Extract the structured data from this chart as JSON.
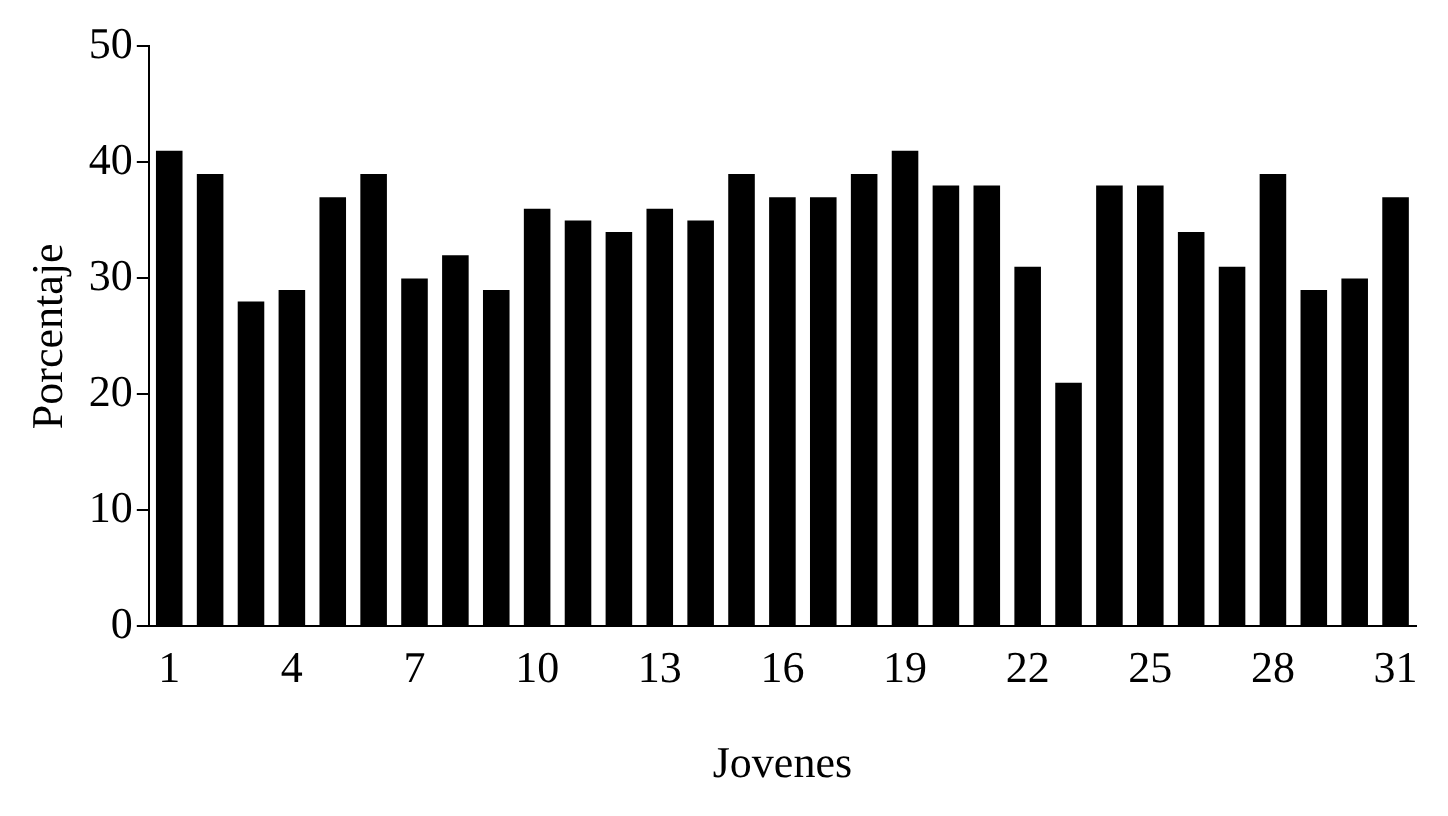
{
  "chart_data": {
    "type": "bar",
    "xlabel": "Jovenes",
    "ylabel": "Porcentaje",
    "categories": [
      "1",
      null,
      null,
      "4",
      null,
      null,
      "7",
      null,
      null,
      "10",
      null,
      null,
      "13",
      null,
      null,
      "16",
      null,
      null,
      "19",
      null,
      null,
      "22",
      null,
      null,
      "25",
      null,
      null,
      "28",
      null,
      null,
      "31"
    ],
    "values": [
      41,
      39,
      28,
      29,
      37,
      39,
      30,
      32,
      29,
      36,
      35,
      34,
      36,
      35,
      39,
      37,
      37,
      39,
      41,
      38,
      38,
      31,
      21,
      38,
      38,
      34,
      31,
      39,
      29,
      30,
      37
    ],
    "color": "#000000",
    "ylim": [
      0,
      50
    ],
    "yticks": [
      0,
      10,
      20,
      30,
      40,
      50
    ],
    "grid": false,
    "legend": false
  }
}
